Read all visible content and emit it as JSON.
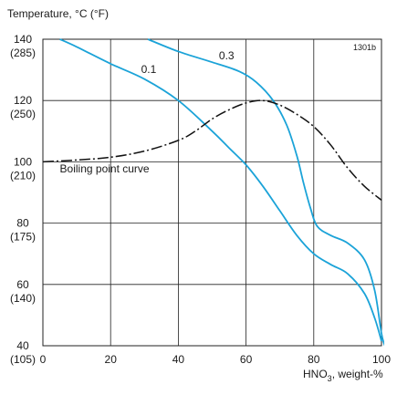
{
  "chart_data": {
    "type": "line",
    "title": "",
    "code": "1301b",
    "ylabel": "Temperature, °C (°F)",
    "xlabel": "HNO",
    "xlabel_sub": "3",
    "xlabel_suffix": ", weight-%",
    "xlim": [
      0,
      100
    ],
    "ylim": [
      40,
      140
    ],
    "grid": true,
    "x_ticks": [
      0,
      20,
      40,
      60,
      80,
      100
    ],
    "y_ticks": [
      {
        "value": 140,
        "c": "140",
        "f": "(285)"
      },
      {
        "value": 120,
        "c": "120",
        "f": "(250)"
      },
      {
        "value": 100,
        "c": "100",
        "f": "(210)"
      },
      {
        "value": 80,
        "c": "80",
        "f": "(175)"
      },
      {
        "value": 60,
        "c": "60",
        "f": "(140)"
      },
      {
        "value": 40,
        "c": "40",
        "f": "(105)"
      }
    ],
    "colors": {
      "series": "#1ba3d8",
      "boiling": "#111111",
      "grid": "#222222"
    },
    "series": [
      {
        "name": "0.1",
        "label_at": [
          29,
          129
        ],
        "points": [
          [
            5,
            140
          ],
          [
            10,
            137.5
          ],
          [
            20,
            132
          ],
          [
            30,
            127
          ],
          [
            40,
            120
          ],
          [
            50,
            110
          ],
          [
            55,
            104.5
          ],
          [
            60,
            99
          ],
          [
            65,
            92
          ],
          [
            70,
            84
          ],
          [
            75,
            76
          ],
          [
            80,
            70
          ],
          [
            85,
            66.5
          ],
          [
            90,
            63.5
          ],
          [
            95,
            57
          ],
          [
            98,
            49
          ],
          [
            100,
            41.5
          ]
        ]
      },
      {
        "name": "0.3",
        "label_at": [
          52,
          133.5
        ],
        "points": [
          [
            31,
            140
          ],
          [
            40,
            136
          ],
          [
            50,
            132.5
          ],
          [
            58,
            129.5
          ],
          [
            63,
            126
          ],
          [
            68,
            120
          ],
          [
            72,
            112
          ],
          [
            75,
            102
          ],
          [
            77,
            93
          ],
          [
            79,
            85
          ],
          [
            81,
            79
          ],
          [
            85,
            76
          ],
          [
            90,
            73.5
          ],
          [
            95,
            68
          ],
          [
            98,
            58
          ],
          [
            100,
            44
          ],
          [
            101,
            40
          ]
        ]
      }
    ],
    "boiling_curve": {
      "name": "Boiling point curve",
      "label_at": [
        5,
        96.5
      ],
      "points": [
        [
          0,
          100
        ],
        [
          10,
          100.6
        ],
        [
          20,
          101.5
        ],
        [
          30,
          103.5
        ],
        [
          40,
          107
        ],
        [
          45,
          110
        ],
        [
          50,
          114
        ],
        [
          55,
          117
        ],
        [
          60,
          119.2
        ],
        [
          65,
          120
        ],
        [
          70,
          118.5
        ],
        [
          75,
          115.5
        ],
        [
          80,
          111.5
        ],
        [
          85,
          105.5
        ],
        [
          90,
          98
        ],
        [
          95,
          92
        ],
        [
          100,
          87.5
        ]
      ]
    }
  }
}
